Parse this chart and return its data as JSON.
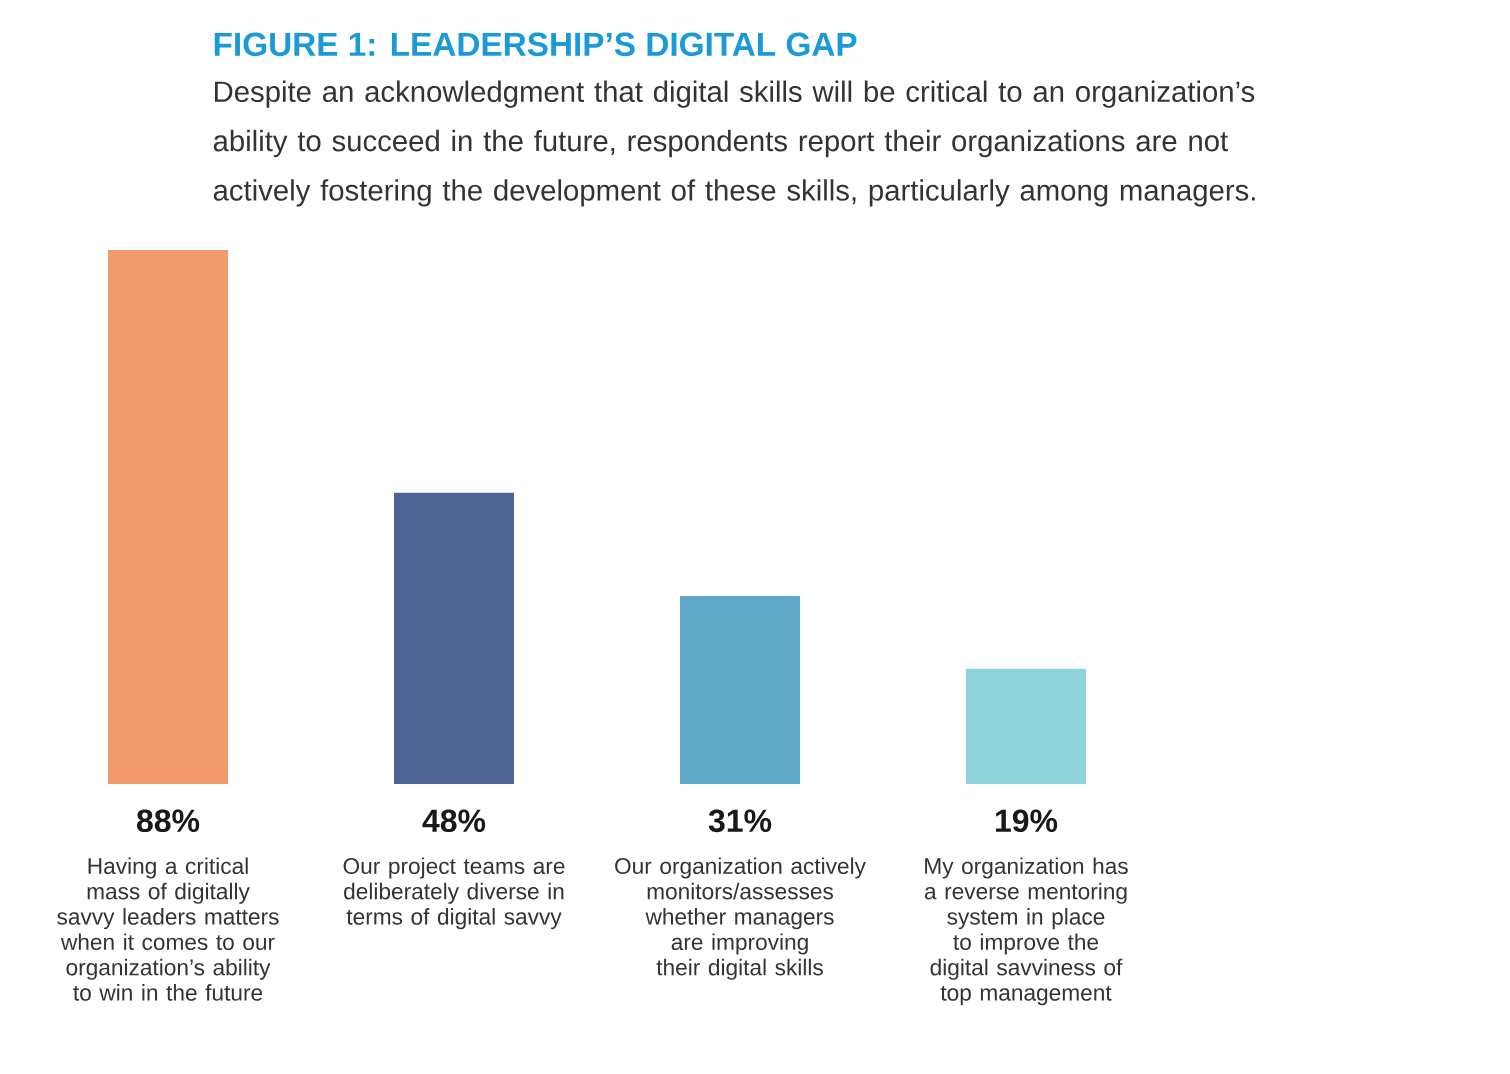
{
  "chart_data": {
    "type": "bar",
    "title": "FIGURE 1: LEADERSHIP’S DIGITAL GAP",
    "subtitle": "Despite an acknowledgment that digital skills will be critical to an organization’s ability to succeed in the future, respondents report their organizations are not actively fostering the development of these skills, particularly among managers.",
    "categories": [
      "Having a critical mass of digitally savvy leaders matters when it comes to our organization’s ability to win in the future",
      "Our project teams are deliberately diverse in terms of digital savvy",
      "Our organization actively monitors/assesses whether managers are improving their digital skills",
      "My organization has a reverse mentoring system in place to improve the digital savviness of top management"
    ],
    "values": [
      88,
      48,
      31,
      19
    ],
    "value_labels": [
      "88%",
      "48%",
      "31%",
      "19%"
    ],
    "colors": [
      "#f09a6e",
      "#4e6494",
      "#5fa8c8",
      "#8fd3dc"
    ]
  }
}
